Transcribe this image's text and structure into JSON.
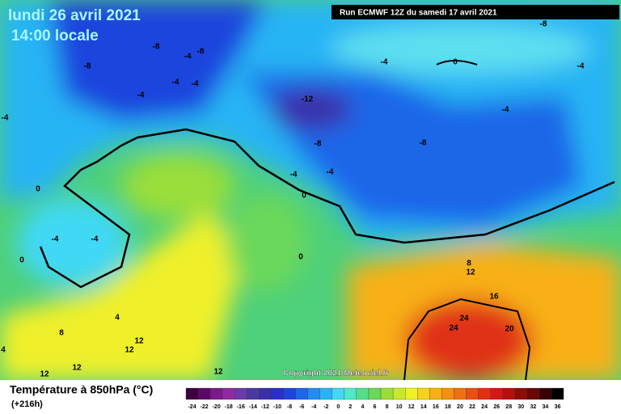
{
  "header": {
    "date": "lundi 26 avril 2021",
    "time": "14:00 locale",
    "run": "Run ECMWF 12Z du samedi 17 avril 2021",
    "copyright": "Copyright 2021 Meteociel.fr"
  },
  "legend": {
    "title": "Température à 850hPa (°C)",
    "lead": "(+216h)",
    "ticks": [
      -24,
      -22,
      -20,
      -18,
      -16,
      -14,
      -12,
      -10,
      -8,
      -6,
      -4,
      -2,
      0,
      2,
      4,
      6,
      8,
      10,
      12,
      14,
      16,
      18,
      20,
      22,
      24,
      26,
      28,
      30,
      32,
      34,
      36
    ],
    "colors": [
      "#3c0040",
      "#5a0a66",
      "#7a1a88",
      "#8f2aa0",
      "#6a3aa8",
      "#4a3aa0",
      "#3b2fa8",
      "#2a30c8",
      "#1f44dd",
      "#1d66e8",
      "#1e8ef0",
      "#28b4f4",
      "#40d8f4",
      "#4fe8c8",
      "#52e08a",
      "#6ad85a",
      "#9ade3a",
      "#c8e82e",
      "#f0f02a",
      "#f8d020",
      "#f8b018",
      "#f59010",
      "#f07010",
      "#e85010",
      "#e03014",
      "#d01818",
      "#b41010",
      "#900a0a",
      "#6a0606",
      "#3a0202",
      "#000000"
    ]
  },
  "contour_labels": [
    -8,
    -4,
    -8,
    -8,
    -4,
    -4,
    -4,
    -4,
    -4,
    -12,
    -8,
    -4,
    -4,
    0,
    -8,
    -4,
    0,
    -4,
    -4,
    -8,
    0,
    -4,
    0,
    0,
    4,
    8,
    4,
    12,
    12,
    12,
    12,
    12,
    8,
    12,
    16,
    24,
    24,
    20
  ]
}
